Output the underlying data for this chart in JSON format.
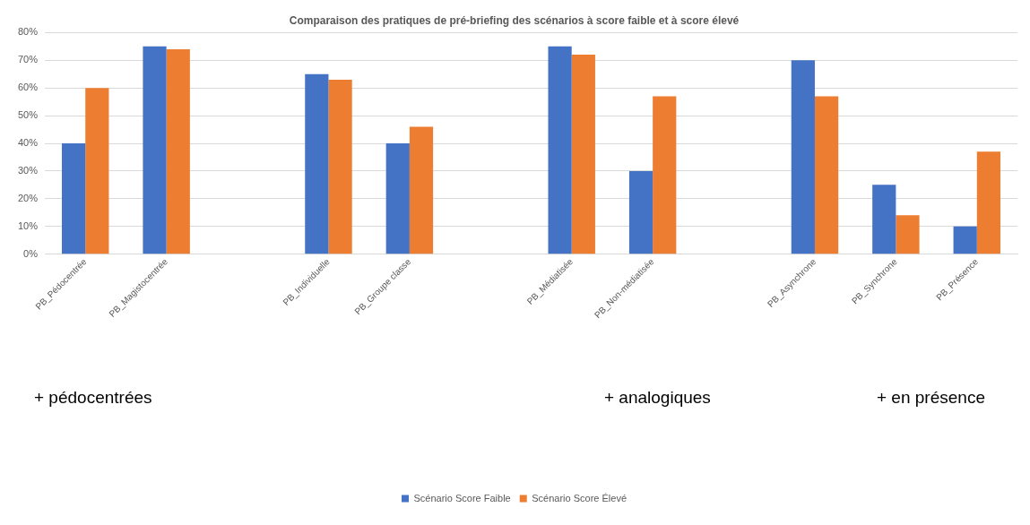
{
  "chart_data": {
    "type": "bar",
    "title": "Comparaison des pratiques de pré-briefing des scénarios à score faible et à score élevé",
    "categories": [
      "PB_Pédocentrée",
      "PB_Magistocentrée",
      null,
      "PB_Individuelle",
      "PB_Groupe classe",
      null,
      "PB_Médiatisée",
      "PB_Non-médiatisée",
      null,
      "PB_Asynchrone",
      "PB_Synchrone",
      "PB_Présence"
    ],
    "series": [
      {
        "name": "Scénario Score Faible",
        "color": "#4472c4",
        "values": [
          40,
          75,
          null,
          65,
          40,
          null,
          75,
          30,
          null,
          70,
          25,
          10
        ]
      },
      {
        "name": "Scénario Score Élevé",
        "color": "#ed7d31",
        "values": [
          60,
          74,
          null,
          63,
          46,
          null,
          72,
          57,
          null,
          57,
          14,
          37
        ]
      }
    ],
    "ylim": [
      0,
      80
    ],
    "yticks": [
      {
        "value": 0,
        "label": "0%"
      },
      {
        "value": 10,
        "label": "10%"
      },
      {
        "value": 20,
        "label": "20%"
      },
      {
        "value": 30,
        "label": "30%"
      },
      {
        "value": 40,
        "label": "40%"
      },
      {
        "value": 50,
        "label": "50%"
      },
      {
        "value": 60,
        "label": "60%"
      },
      {
        "value": 70,
        "label": "70%"
      },
      {
        "value": 80,
        "label": "80%"
      }
    ],
    "grid": "y",
    "legend": "bottom",
    "annotations": [
      "+ pédocentrées",
      "+ analogiques",
      "+ en présence"
    ]
  }
}
